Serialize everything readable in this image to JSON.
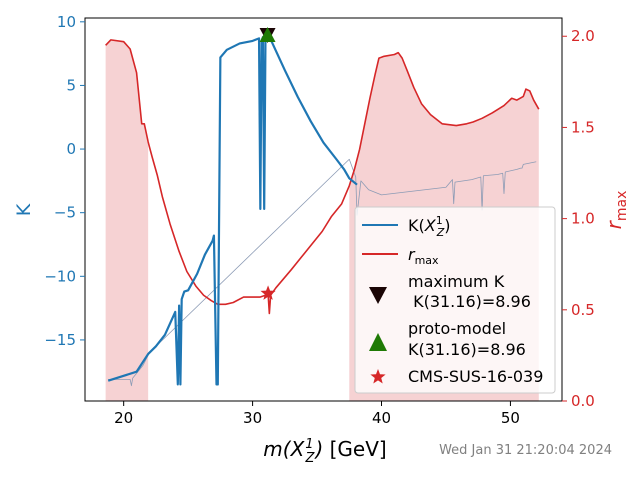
{
  "chart_data": {
    "type": "line",
    "xlabel_parts": {
      "m": "m(",
      "X": "X",
      "sub": "Z",
      "sup": "1",
      "close": ")",
      "unit": " [GeV]"
    },
    "ylabel_left": "K",
    "ylabel_right_parts": {
      "r": "r",
      "sub": "max"
    },
    "xlim": [
      17,
      54
    ],
    "ylim_left": [
      -19.8,
      10.3
    ],
    "ylim_right": [
      0,
      2.1
    ],
    "x_ticks": [
      20,
      30,
      40,
      50
    ],
    "y_left_ticks": [
      -15,
      -10,
      -5,
      0,
      5,
      10
    ],
    "y_right_ticks": [
      0.0,
      0.5,
      1.0,
      1.5,
      2.0
    ],
    "colors": {
      "K": "#1f77b4",
      "rmax": "#d62728",
      "fill": "#f6d2d3",
      "thin": "#8c9bb5",
      "maximum": "#1a0505",
      "protomodel": "#1f7a05",
      "star": "#d62728",
      "left_axis": "#1f77b4",
      "right_axis": "#d62728"
    },
    "series": [
      {
        "name": "K(X_Z^1)",
        "x": [
          18.8,
          21.0,
          21.9,
          22.5,
          23.2,
          24.0,
          24.2,
          24.3,
          24.4,
          24.5,
          24.6,
          24.7,
          25.0,
          25.7,
          26.3,
          26.9,
          27.0,
          27.2,
          27.3,
          27.5,
          28.0,
          29.0,
          30.0,
          30.5,
          30.6,
          30.7,
          30.8,
          30.9,
          31.0,
          31.1,
          31.2,
          31.5,
          32.5,
          33.5,
          34.5,
          35.5,
          36.5,
          37.1,
          37.5,
          38.1
        ],
        "y": [
          -18.2,
          -17.5,
          -16.1,
          -15.5,
          -14.6,
          -12.8,
          -18.5,
          -12.3,
          -18.5,
          -11.8,
          -11.5,
          -11.2,
          -11.1,
          -9.8,
          -8.3,
          -7.2,
          -6.8,
          -18.5,
          -18.5,
          7.2,
          7.8,
          8.3,
          8.5,
          8.7,
          -4.7,
          8.5,
          8.8,
          -4.7,
          8.9,
          8.96,
          8.96,
          8.4,
          6.2,
          4.1,
          2.2,
          0.5,
          -0.8,
          -1.6,
          -2.3,
          -2.8
        ]
      },
      {
        "name": "r_max",
        "x": [
          18.6,
          19.0,
          20.0,
          20.5,
          21.0,
          21.4,
          21.6,
          21.9,
          22.2,
          22.6,
          23.0,
          23.6,
          24.3,
          24.9,
          25.6,
          26.2,
          26.8,
          27.3,
          27.9,
          28.5,
          29.3,
          30.0,
          30.6,
          31.0,
          31.2,
          31.3,
          31.4,
          31.8,
          32.4,
          33.0,
          33.8,
          34.6,
          35.4,
          36.1,
          36.9,
          37.5,
          37.9,
          38.3,
          38.7,
          39.1,
          39.5,
          39.8,
          40.2,
          41.0,
          41.3,
          41.6,
          42.0,
          42.5,
          43.1,
          43.8,
          44.7,
          45.8,
          46.6,
          47.1,
          47.8,
          48.6,
          49.5,
          50.1,
          50.5,
          51.0,
          51.2,
          51.5,
          51.8,
          52.2
        ],
        "y": [
          1.95,
          1.98,
          1.97,
          1.93,
          1.8,
          1.52,
          1.52,
          1.42,
          1.34,
          1.24,
          1.12,
          0.97,
          0.82,
          0.71,
          0.63,
          0.58,
          0.55,
          0.53,
          0.53,
          0.54,
          0.57,
          0.57,
          0.57,
          0.58,
          0.59,
          0.48,
          0.58,
          0.62,
          0.67,
          0.72,
          0.79,
          0.86,
          0.93,
          1.01,
          1.08,
          1.18,
          1.27,
          1.38,
          1.52,
          1.66,
          1.79,
          1.88,
          1.89,
          1.9,
          1.91,
          1.88,
          1.81,
          1.72,
          1.63,
          1.57,
          1.52,
          1.51,
          1.52,
          1.53,
          1.55,
          1.58,
          1.62,
          1.66,
          1.65,
          1.67,
          1.71,
          1.7,
          1.65,
          1.6
        ]
      },
      {
        "name": "",
        "x": [
          18.8,
          20.5,
          20.6,
          20.7,
          21.5,
          22.0,
          37.5,
          38.0,
          38.1,
          38.4,
          39.0,
          40.0,
          45.0,
          45.5,
          45.6,
          45.7,
          47.0,
          47.7,
          47.8,
          47.9,
          49.0,
          49.4,
          49.5,
          49.6,
          50.5,
          50.8,
          50.9,
          51.0,
          52.0
        ],
        "y": [
          -18.1,
          -18.1,
          -18.6,
          -18.0,
          -17.0,
          -16.0,
          -0.8,
          -2.2,
          -5.2,
          -2.5,
          -3.2,
          -3.6,
          -3.0,
          -2.4,
          -4.3,
          -2.6,
          -2.4,
          -2.2,
          -4.8,
          -2.1,
          -2.0,
          -1.9,
          -3.5,
          -1.8,
          -1.6,
          -1.5,
          -1.5,
          -1.2,
          -1.0
        ]
      }
    ],
    "fill_regions": [
      {
        "x": [
          18.6,
          19.0,
          20.0,
          20.5,
          21.0,
          21.4,
          21.6,
          21.9
        ],
        "y": [
          1.95,
          1.98,
          1.97,
          1.93,
          1.8,
          1.52,
          1.52,
          1.42
        ]
      },
      {
        "x": [
          37.5,
          37.9,
          38.3,
          38.7,
          39.1,
          39.5,
          39.8,
          40.2,
          41.0,
          41.3,
          41.6,
          42.0,
          42.5,
          43.1,
          43.8,
          44.7,
          45.8,
          46.6,
          47.1,
          47.8,
          48.6,
          49.5,
          50.1,
          50.5,
          51.0,
          51.2,
          51.5,
          51.8,
          52.2
        ],
        "y": [
          1.18,
          1.27,
          1.38,
          1.52,
          1.66,
          1.79,
          1.88,
          1.89,
          1.9,
          1.91,
          1.88,
          1.81,
          1.72,
          1.63,
          1.57,
          1.52,
          1.51,
          1.52,
          1.53,
          1.55,
          1.58,
          1.62,
          1.66,
          1.65,
          1.67,
          1.71,
          1.7,
          1.65,
          1.6
        ]
      }
    ],
    "markers": [
      {
        "name": "maximum K",
        "x": 31.16,
        "y": 8.96,
        "shape": "triangle-down"
      },
      {
        "name": "proto-model",
        "x": 31.16,
        "y": 8.96,
        "shape": "triangle-up"
      },
      {
        "name": "CMS-SUS-16-039",
        "x": 31.2,
        "y_right": 0.59,
        "shape": "star"
      }
    ],
    "legend": {
      "position": "lower-right",
      "k_label": {
        "pre": "K(",
        "X": "X",
        "sub": "Z",
        "sup": "1",
        "close": ")"
      },
      "r_label": {
        "r": "r",
        "sub": "max"
      },
      "maximum_line1": "maximum K",
      "maximum_line2": " K(31.16)=8.96",
      "proto_line1": "proto-model",
      "proto_line2": "K(31.16)=8.96",
      "cms": "CMS-SUS-16-039"
    },
    "timestamp": "Wed Jan 31 21:20:04 2024"
  }
}
